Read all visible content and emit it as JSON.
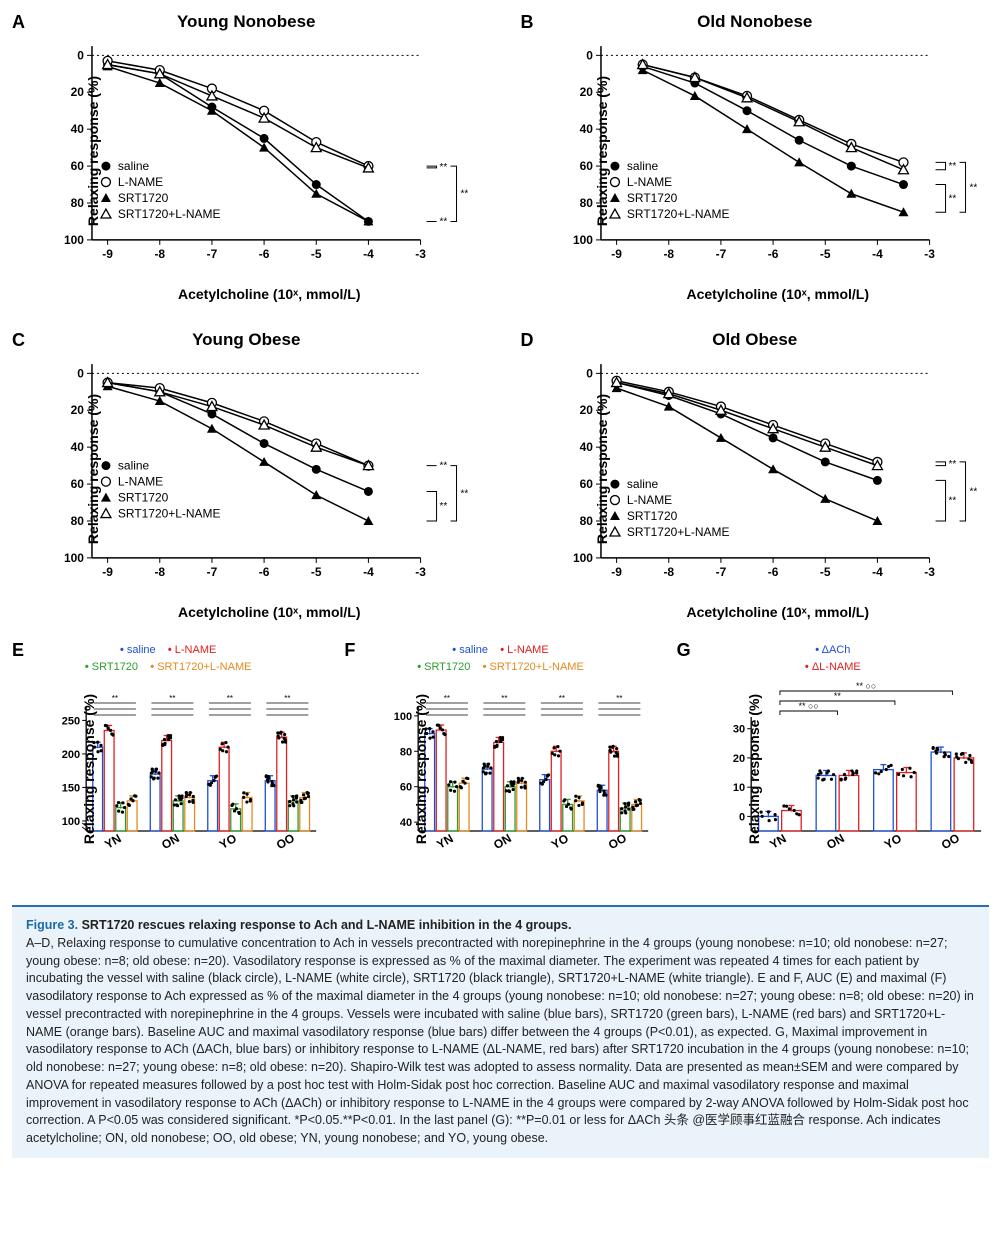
{
  "colors": {
    "black": "#000000",
    "white": "#ffffff",
    "blue": "#1f4fd6",
    "red": "#e02020",
    "green": "#2e9b2e",
    "orange": "#e58a1f",
    "caption_bg": "#eaf3fa",
    "caption_border": "#2a6db0",
    "fig_num": "#1a6aa8"
  },
  "panel_common": {
    "y_label": "Relaxing response (%)",
    "x_label_html": "Acetylcholine (10ˣ, mmol/L)",
    "x_ticks": [
      -9,
      -8,
      -7,
      -6,
      -5,
      -4,
      -3
    ],
    "y_ticks": [
      0,
      20,
      40,
      60,
      80,
      100
    ],
    "xlim": [
      -9.3,
      -3
    ],
    "ylim": [
      100,
      -5
    ],
    "series_defs": [
      {
        "key": "saline",
        "label": "saline",
        "marker": "filled-circle"
      },
      {
        "key": "lname",
        "label": "L-NAME",
        "marker": "open-circle"
      },
      {
        "key": "srt",
        "label": "SRT1720",
        "marker": "filled-triangle"
      },
      {
        "key": "srtlname",
        "label": "SRT1720+L-NAME",
        "marker": "open-triangle"
      }
    ],
    "line_color": "#000000",
    "marker_size": 4.5,
    "line_width": 1.5,
    "sig_label": "**"
  },
  "panels": {
    "A": {
      "title": "Young Nonobese",
      "legend_pos": "bottom-left",
      "sig_brackets": [
        {
          "top": "saline",
          "bottom": "srt",
          "group": "inner"
        },
        {
          "top": "lname",
          "bottom": "srtlname",
          "group": "outer"
        }
      ],
      "data": {
        "x": [
          -9,
          -8,
          -7,
          -6,
          -5,
          -4
        ],
        "saline": [
          5,
          10,
          28,
          45,
          70,
          90
        ],
        "lname": [
          3,
          8,
          18,
          30,
          47,
          60
        ],
        "srt": [
          6,
          15,
          30,
          50,
          75,
          90
        ],
        "srtlname": [
          5,
          10,
          22,
          34,
          50,
          61
        ]
      }
    },
    "B": {
      "title": "Old Nonobese",
      "legend_pos": "bottom-left",
      "sig_brackets": [
        {
          "top": "saline",
          "bottom": "srt"
        },
        {
          "top": "lname",
          "bottom": "srtlname"
        }
      ],
      "data": {
        "x": [
          -8.5,
          -7.5,
          -6.5,
          -5.5,
          -4.5,
          -3.5
        ],
        "saline": [
          6,
          15,
          30,
          46,
          60,
          70
        ],
        "lname": [
          5,
          12,
          22,
          35,
          48,
          58
        ],
        "srt": [
          8,
          22,
          40,
          58,
          75,
          85
        ],
        "srtlname": [
          5,
          12,
          23,
          36,
          50,
          62
        ]
      }
    },
    "C": {
      "title": "Young Obese",
      "legend_pos": "mid-left",
      "sig_brackets": [
        {
          "top": "saline",
          "bottom": "srt"
        },
        {
          "top": "lname",
          "bottom": "srtlname"
        }
      ],
      "data": {
        "x": [
          -9,
          -8,
          -7,
          -6,
          -5,
          -4
        ],
        "saline": [
          5,
          10,
          22,
          38,
          52,
          64
        ],
        "lname": [
          5,
          8,
          16,
          26,
          38,
          50
        ],
        "srt": [
          7,
          15,
          30,
          48,
          66,
          80
        ],
        "srtlname": [
          5,
          10,
          18,
          28,
          40,
          50
        ]
      }
    },
    "D": {
      "title": "Old Obese",
      "legend_pos": "bottom-left",
      "sig_brackets": [
        {
          "top": "saline",
          "bottom": "srt"
        },
        {
          "top": "lname",
          "bottom": "srtlname"
        }
      ],
      "data": {
        "x": [
          -9,
          -8,
          -7,
          -6,
          -5,
          -4
        ],
        "saline": [
          5,
          12,
          22,
          35,
          48,
          58
        ],
        "lname": [
          4,
          10,
          18,
          28,
          38,
          48
        ],
        "srt": [
          8,
          18,
          35,
          52,
          68,
          80
        ],
        "srtlname": [
          5,
          11,
          20,
          30,
          40,
          50
        ]
      }
    }
  },
  "bar_common": {
    "groups": [
      "YN",
      "ON",
      "YO",
      "OO"
    ],
    "y_label": "Relaxing response (%)"
  },
  "bar_panels": {
    "E": {
      "legend": [
        {
          "label": "saline",
          "color": "#1f4fd6"
        },
        {
          "label": "L-NAME",
          "color": "#e02020"
        },
        {
          "label": "SRT1720",
          "color": "#2e9b2e"
        },
        {
          "label": "SRT1720+L-NAME",
          "color": "#e58a1f"
        }
      ],
      "y_ticks": [
        100,
        150,
        200,
        250
      ],
      "ylim": [
        85,
        270
      ],
      "bars": {
        "YN": {
          "saline": 210,
          "lname": 235,
          "srt": 120,
          "srtlname": 130
        },
        "ON": {
          "saline": 170,
          "lname": 220,
          "srt": 130,
          "srtlname": 135
        },
        "YO": {
          "saline": 160,
          "lname": 210,
          "srt": 118,
          "srtlname": 135
        },
        "OO": {
          "saline": 160,
          "lname": 225,
          "srt": 130,
          "srtlname": 135
        }
      },
      "sig_pairs_per_group": 3
    },
    "F": {
      "legend": [
        {
          "label": "saline",
          "color": "#1f4fd6"
        },
        {
          "label": "L-NAME",
          "color": "#e02020"
        },
        {
          "label": "SRT1720",
          "color": "#2e9b2e"
        },
        {
          "label": "SRT1720+L-NAME",
          "color": "#e58a1f"
        }
      ],
      "y_ticks": [
        40,
        60,
        80,
        100
      ],
      "ylim": [
        35,
        105
      ],
      "bars": {
        "YN": {
          "saline": 90,
          "lname": 92,
          "srt": 60,
          "srtlname": 62
        },
        "ON": {
          "saline": 70,
          "lname": 85,
          "srt": 60,
          "srtlname": 62
        },
        "YO": {
          "saline": 64,
          "lname": 80,
          "srt": 50,
          "srtlname": 52
        },
        "OO": {
          "saline": 58,
          "lname": 80,
          "srt": 48,
          "srtlname": 50
        }
      },
      "sig_pairs_per_group": 3
    },
    "G": {
      "legend": [
        {
          "label": "ΔACh",
          "color": "#1f4fd6"
        },
        {
          "label": "ΔL-NAME",
          "color": "#e02020"
        }
      ],
      "y_ticks": [
        0,
        10,
        20,
        30
      ],
      "ylim": [
        -5,
        34
      ],
      "bars": {
        "YN": {
          "dach": 0,
          "dlname": 2
        },
        "ON": {
          "dach": 14,
          "dlname": 14
        },
        "YO": {
          "dach": 16,
          "dlname": 15
        },
        "OO": {
          "dach": 22,
          "dlname": 20
        }
      },
      "sig_brackets": [
        {
          "from": "YN",
          "to": "ON",
          "label": "** ○○"
        },
        {
          "from": "YN",
          "to": "YO",
          "label": "**"
        },
        {
          "from": "YN",
          "to": "OO",
          "label": "** ○○"
        }
      ]
    }
  },
  "caption": {
    "fig_num": "Figure 3.",
    "title": "SRT1720 rescues relaxing response to Ach and L-NAME inhibition in the 4 groups.",
    "body_parts": [
      "A–D, Relaxing response to cumulative concentration to Ach in vessels precontracted with norepinephrine in the 4 groups (young nonobese: n=10; old nonobese: n=27; young obese: n=8; old obese: n=20). Vasodilatory response is expressed as % of the maximal diameter. The experiment was repeated 4 times for each patient by incubating the vessel with saline (black circle), L-NAME (white circle), SRT1720 (black triangle), SRT1720+L-NAME (white triangle). ",
      "E and F, AUC (E) and maximal (F) vasodilatory response to Ach expressed as % of the maximal diameter in the 4 groups (young nonobese: n=10; old nonobese: n=27; young obese: n=8; old obese: n=20) in vessel precontracted with norepinephrine in the 4 groups. Vessels were incubated with saline (blue bars), SRT1720 (green bars), L-NAME (red bars) and SRT1720+L-NAME (orange bars). Baseline AUC and maximal vasodilatory response (blue bars) differ between the 4 groups (P<0.01), as expected. ",
      "G, Maximal improvement in vasodilatory response to ACh (ΔACh, blue bars) or inhibitory response to L-NAME (ΔL-NAME, red bars) after SRT1720 incubation in the 4 groups (young nonobese: n=10; old nonobese: n=27; young obese: n=8; old obese: n=20). Shapiro-Wilk test was adopted to assess normality. Data are presented as mean±SEM and were compared by ANOVA for repeated measures followed by a post hoc test with Holm-Sidak post hoc correction. Baseline AUC and maximal vasodilatory response and maximal improvement in vasodilatory response to ACh (ΔACh) or inhibitory response to L-NAME in the 4 groups were compared by 2-way ANOVA followed by Holm-Sidak post hoc correction. A P<0.05 was considered significant. *P<0.05.**P<0.01. In the last panel (G): **P=0.01 or less for ΔACh 头条 @医学顾事红蓝融合 response. Ach indicates acetylcholine; ON, old nonobese; OO, old obese; YN, young nonobese; and YO, young obese."
    ]
  }
}
